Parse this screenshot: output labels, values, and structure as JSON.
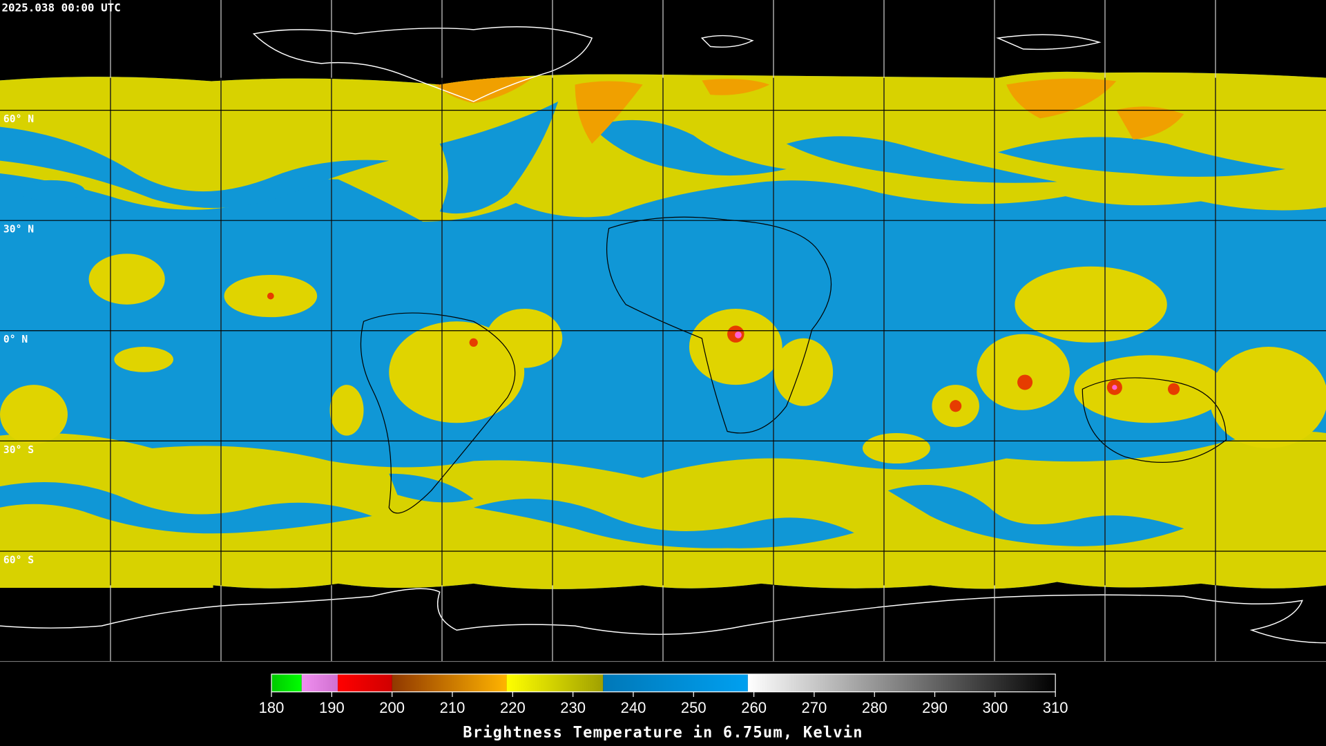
{
  "header": {
    "timestamp": "2025.038 00:00 UTC"
  },
  "map": {
    "xlim": [
      -180,
      180
    ],
    "ylim": [
      -90,
      90
    ],
    "lon_lines": [
      -150,
      -120,
      -90,
      -60,
      -30,
      0,
      30,
      60,
      90,
      120,
      150
    ],
    "lat_lines": [
      {
        "value": 60,
        "label": "60° N"
      },
      {
        "value": 30,
        "label": "30° N"
      },
      {
        "value": 0,
        "label": "0° N"
      },
      {
        "value": -30,
        "label": "30° S"
      },
      {
        "value": -60,
        "label": "60° S"
      }
    ]
  },
  "colorbar": {
    "lim": [
      180,
      310
    ],
    "ticks": [
      180,
      190,
      200,
      210,
      220,
      230,
      240,
      250,
      260,
      270,
      280,
      290,
      300,
      310
    ],
    "label": "Brightness Temperature in 6.75um, Kelvin",
    "segments": [
      {
        "from": 180,
        "to": 185,
        "colors": [
          "#00c800",
          "#00ff00"
        ]
      },
      {
        "from": 185,
        "to": 191,
        "colors": [
          "#f090f0",
          "#d070d0"
        ]
      },
      {
        "from": 191,
        "to": 200,
        "colors": [
          "#ff0000",
          "#d00000"
        ]
      },
      {
        "from": 200,
        "to": 219,
        "colors": [
          "#903800",
          "#ffb400"
        ]
      },
      {
        "from": 219,
        "to": 235,
        "colors": [
          "#ffff00",
          "#a0a000"
        ]
      },
      {
        "from": 235,
        "to": 259,
        "colors": [
          "#0078b8",
          "#00a0f0"
        ]
      },
      {
        "from": 259,
        "to": 310,
        "colors": [
          "#ffffff",
          "#000000"
        ]
      }
    ]
  }
}
